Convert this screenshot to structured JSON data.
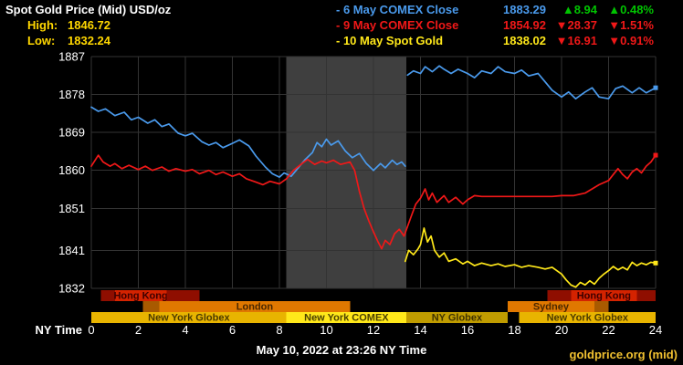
{
  "header": {
    "title": "Spot Gold Price (Mid) USD/oz",
    "high_label": "High:",
    "high_value": "1846.72",
    "low_label": "Low:",
    "low_value": "1832.24"
  },
  "legend": [
    {
      "label": "- 6 May COMEX Close",
      "color": "#4a9aec",
      "value": "1883.29",
      "change": "▲8.94",
      "change_pct": "▲0.48%",
      "change_color": "#00c400"
    },
    {
      "label": "- 9 May COMEX Close",
      "color": "#f01818",
      "value": "1854.92",
      "change": "▼28.37",
      "change_pct": "▼1.51%",
      "change_color": "#f01818"
    },
    {
      "label": "- 10 May Spot Gold",
      "color": "#ffe81a",
      "value": "1838.02",
      "change": "▼16.91",
      "change_pct": "▼0.91%",
      "change_color": "#f01818"
    }
  ],
  "footer": {
    "timestamp": "May 10, 2022 at 23:26 NY Time",
    "source": "goldprice.org (mid)"
  },
  "chart_data": {
    "type": "line",
    "title": "Spot Gold Price (Mid) USD/oz",
    "xlabel": "NY Time",
    "x_range": [
      0,
      24
    ],
    "y_range": [
      1832,
      1887
    ],
    "x_ticks": [
      0,
      2,
      4,
      6,
      8,
      10,
      12,
      14,
      16,
      18,
      20,
      22,
      24
    ],
    "y_ticks": [
      1887,
      1878,
      1869,
      1860,
      1851,
      1841,
      1832
    ],
    "grid_color": "#333333",
    "comex_band": {
      "start": 8.3,
      "end": 13.4,
      "color": "#3f3f3f"
    },
    "series": [
      {
        "name": "6 May COMEX Close",
        "color": "#4a9aec",
        "segments": [
          [
            [
              0,
              1875
            ],
            [
              0.3,
              1874
            ],
            [
              0.6,
              1874.6
            ],
            [
              1,
              1873
            ],
            [
              1.4,
              1873.8
            ],
            [
              1.7,
              1872
            ],
            [
              2,
              1872.6
            ],
            [
              2.4,
              1871.2
            ],
            [
              2.7,
              1872
            ],
            [
              3,
              1870.4
            ],
            [
              3.3,
              1871
            ],
            [
              3.7,
              1868.8
            ],
            [
              4,
              1868.2
            ],
            [
              4.3,
              1868.8
            ],
            [
              4.7,
              1866.8
            ],
            [
              5,
              1866
            ],
            [
              5.3,
              1866.6
            ],
            [
              5.6,
              1865.4
            ],
            [
              6,
              1866.4
            ],
            [
              6.3,
              1867.2
            ],
            [
              6.7,
              1865.8
            ],
            [
              7,
              1863.4
            ],
            [
              7.4,
              1860.8
            ],
            [
              7.7,
              1859.2
            ],
            [
              8,
              1858.4
            ],
            [
              8.2,
              1859.4
            ],
            [
              8.5,
              1858.6
            ],
            [
              8.8,
              1860.6
            ],
            [
              9.1,
              1862.6
            ],
            [
              9.4,
              1864.2
            ],
            [
              9.6,
              1866.6
            ],
            [
              9.8,
              1865.6
            ],
            [
              10,
              1867.4
            ],
            [
              10.2,
              1866
            ],
            [
              10.5,
              1867
            ],
            [
              10.8,
              1864.6
            ],
            [
              11.1,
              1863
            ],
            [
              11.4,
              1864
            ],
            [
              11.7,
              1861.6
            ],
            [
              12,
              1860
            ],
            [
              12.3,
              1861.6
            ],
            [
              12.5,
              1860.6
            ],
            [
              12.8,
              1862.4
            ],
            [
              13,
              1861.4
            ],
            [
              13.2,
              1862
            ],
            [
              13.35,
              1861
            ]
          ],
          [
            [
              13.45,
              1882.6
            ],
            [
              13.7,
              1883.6
            ],
            [
              14,
              1883
            ],
            [
              14.2,
              1884.6
            ],
            [
              14.5,
              1883.4
            ],
            [
              14.8,
              1884.8
            ],
            [
              15,
              1884
            ],
            [
              15.3,
              1883
            ],
            [
              15.6,
              1884
            ],
            [
              16,
              1883
            ],
            [
              16.3,
              1882
            ],
            [
              16.6,
              1883.6
            ],
            [
              17,
              1883
            ],
            [
              17.3,
              1884.6
            ],
            [
              17.6,
              1883.4
            ],
            [
              18,
              1883
            ],
            [
              18.3,
              1883.8
            ],
            [
              18.6,
              1882.4
            ],
            [
              19,
              1883
            ],
            [
              19.3,
              1881
            ],
            [
              19.6,
              1879
            ],
            [
              20,
              1877.4
            ],
            [
              20.3,
              1878.6
            ],
            [
              20.6,
              1877
            ],
            [
              21,
              1878.6
            ],
            [
              21.3,
              1879.6
            ],
            [
              21.6,
              1877.4
            ],
            [
              22,
              1877
            ],
            [
              22.3,
              1879.4
            ],
            [
              22.6,
              1880
            ],
            [
              23,
              1878.4
            ],
            [
              23.3,
              1879.6
            ],
            [
              23.6,
              1878.4
            ],
            [
              24,
              1879.6
            ]
          ]
        ]
      },
      {
        "name": "9 May COMEX Close",
        "color": "#f01818",
        "segments": [
          [
            [
              0,
              1861
            ],
            [
              0.3,
              1863.6
            ],
            [
              0.5,
              1862
            ],
            [
              0.8,
              1861
            ],
            [
              1,
              1861.6
            ],
            [
              1.3,
              1860.4
            ],
            [
              1.6,
              1861.2
            ],
            [
              2,
              1860.2
            ],
            [
              2.3,
              1861
            ],
            [
              2.6,
              1860
            ],
            [
              3,
              1860.8
            ],
            [
              3.3,
              1859.8
            ],
            [
              3.6,
              1860.4
            ],
            [
              4,
              1859.8
            ],
            [
              4.3,
              1860.2
            ],
            [
              4.6,
              1859.2
            ],
            [
              5,
              1860
            ],
            [
              5.3,
              1859
            ],
            [
              5.6,
              1859.6
            ],
            [
              6,
              1858.6
            ],
            [
              6.3,
              1859.2
            ],
            [
              6.6,
              1858
            ],
            [
              7,
              1857.2
            ],
            [
              7.3,
              1856.6
            ],
            [
              7.6,
              1857.4
            ],
            [
              8,
              1856.8
            ],
            [
              8.3,
              1858
            ],
            [
              8.6,
              1860
            ],
            [
              9,
              1861.8
            ],
            [
              9.2,
              1862.6
            ],
            [
              9.5,
              1861.4
            ],
            [
              9.8,
              1862.2
            ],
            [
              10,
              1861.8
            ],
            [
              10.3,
              1862.4
            ],
            [
              10.6,
              1861.4
            ],
            [
              11,
              1862
            ],
            [
              11.2,
              1860
            ],
            [
              11.4,
              1855
            ],
            [
              11.6,
              1851
            ],
            [
              11.8,
              1848
            ],
            [
              12,
              1845.4
            ],
            [
              12.2,
              1843
            ],
            [
              12.35,
              1841.4
            ],
            [
              12.5,
              1843.4
            ],
            [
              12.7,
              1842.4
            ],
            [
              12.9,
              1845
            ],
            [
              13.1,
              1846
            ],
            [
              13.3,
              1844.4
            ],
            [
              13.6,
              1849
            ],
            [
              13.8,
              1852
            ],
            [
              14,
              1853.4
            ],
            [
              14.2,
              1855.6
            ],
            [
              14.35,
              1853
            ],
            [
              14.5,
              1854.6
            ],
            [
              14.7,
              1852.4
            ],
            [
              15,
              1854
            ],
            [
              15.2,
              1852.4
            ],
            [
              15.5,
              1853.6
            ],
            [
              15.8,
              1852
            ],
            [
              16,
              1853
            ],
            [
              16.3,
              1854
            ],
            [
              16.6,
              1853.8
            ],
            [
              17,
              1853.8
            ],
            [
              18,
              1853.8
            ],
            [
              19,
              1853.8
            ],
            [
              19.6,
              1853.8
            ],
            [
              20,
              1854
            ],
            [
              20.5,
              1854
            ],
            [
              21,
              1854.6
            ],
            [
              21.3,
              1855.6
            ],
            [
              21.6,
              1856.6
            ],
            [
              22,
              1857.6
            ],
            [
              22.2,
              1859
            ],
            [
              22.4,
              1860.4
            ],
            [
              22.6,
              1859
            ],
            [
              22.8,
              1858
            ],
            [
              23,
              1859.6
            ],
            [
              23.2,
              1860.4
            ],
            [
              23.4,
              1859.4
            ],
            [
              23.6,
              1861
            ],
            [
              23.8,
              1862
            ],
            [
              24,
              1863.6
            ]
          ]
        ]
      },
      {
        "name": "10 May Spot Gold",
        "color": "#ffe81a",
        "segments": [
          [
            [
              13.35,
              1838.4
            ],
            [
              13.5,
              1841
            ],
            [
              13.7,
              1840
            ],
            [
              13.9,
              1841.4
            ],
            [
              14,
              1842.4
            ],
            [
              14.15,
              1846.3
            ],
            [
              14.3,
              1843
            ],
            [
              14.45,
              1844.4
            ],
            [
              14.6,
              1841
            ],
            [
              14.8,
              1839.4
            ],
            [
              15,
              1840.4
            ],
            [
              15.2,
              1838.4
            ],
            [
              15.5,
              1839
            ],
            [
              15.8,
              1837.8
            ],
            [
              16,
              1838.4
            ],
            [
              16.3,
              1837.4
            ],
            [
              16.6,
              1838
            ],
            [
              17,
              1837.4
            ],
            [
              17.3,
              1837.8
            ],
            [
              17.6,
              1837.2
            ],
            [
              18,
              1837.6
            ],
            [
              18.3,
              1837
            ],
            [
              18.6,
              1837.4
            ],
            [
              19,
              1837
            ],
            [
              19.3,
              1836.6
            ],
            [
              19.6,
              1837
            ],
            [
              20,
              1835.4
            ],
            [
              20.2,
              1834
            ],
            [
              20.4,
              1832.8
            ],
            [
              20.6,
              1832.3
            ],
            [
              20.8,
              1833.4
            ],
            [
              21,
              1832.8
            ],
            [
              21.2,
              1833.8
            ],
            [
              21.4,
              1833
            ],
            [
              21.6,
              1834.4
            ],
            [
              21.8,
              1835.4
            ],
            [
              22,
              1836.2
            ],
            [
              22.2,
              1837.2
            ],
            [
              22.4,
              1836.4
            ],
            [
              22.6,
              1837
            ],
            [
              22.8,
              1836.4
            ],
            [
              23,
              1838.2
            ],
            [
              23.2,
              1837.4
            ],
            [
              23.4,
              1838
            ],
            [
              23.6,
              1837.6
            ],
            [
              23.8,
              1838.2
            ],
            [
              24,
              1838
            ]
          ]
        ]
      }
    ],
    "sessions": [
      {
        "row": 0,
        "start": 0.4,
        "end": 1.0,
        "color": "#8f0e00"
      },
      {
        "row": 0,
        "start": 1.0,
        "end": 3.2,
        "color": "#d42300",
        "label": "Hong Kong",
        "label_color": "#3c0000"
      },
      {
        "row": 0,
        "start": 3.2,
        "end": 4.6,
        "color": "#8f0e00"
      },
      {
        "row": 0,
        "start": 19.4,
        "end": 20.4,
        "color": "#8f0e00"
      },
      {
        "row": 0,
        "start": 20.4,
        "end": 23.2,
        "color": "#d42300",
        "label": "Hong Kong",
        "label_color": "#3c0000"
      },
      {
        "row": 0,
        "start": 23.2,
        "end": 24,
        "color": "#8f0e00"
      },
      {
        "row": 1,
        "start": 2.2,
        "end": 2.9,
        "color": "#a85a00"
      },
      {
        "row": 1,
        "start": 2.9,
        "end": 11.0,
        "color": "#e07800",
        "label": "London",
        "label_color": "#4a2800"
      },
      {
        "row": 1,
        "start": 17.7,
        "end": 21.4,
        "color": "#e07800",
        "label": "Sydney",
        "label_color": "#4a2800"
      },
      {
        "row": 1,
        "start": 21.4,
        "end": 22.0,
        "color": "#a85a00"
      },
      {
        "row": 2,
        "start": 0,
        "end": 8.3,
        "color": "#e8b400",
        "label": "New York Globex",
        "label_color": "#4a3a00"
      },
      {
        "row": 2,
        "start": 8.3,
        "end": 13.4,
        "color": "#ffe81a",
        "label": "New York COMEX",
        "label_color": "#4a4000"
      },
      {
        "row": 2,
        "start": 13.4,
        "end": 17.7,
        "color": "#c09c00",
        "label": "NY Globex",
        "label_color": "#3e3200"
      },
      {
        "row": 2,
        "start": 18.2,
        "end": 24,
        "color": "#e8b400",
        "label": "New York Globex",
        "label_color": "#4a3a00"
      }
    ]
  }
}
